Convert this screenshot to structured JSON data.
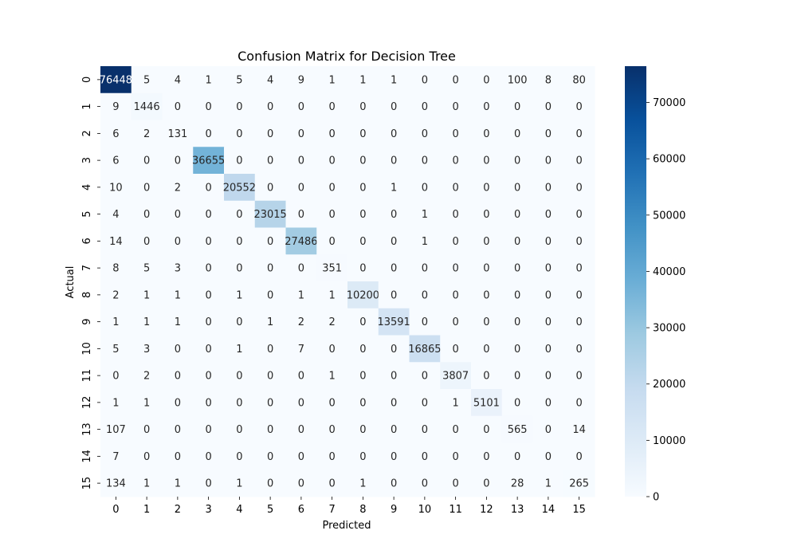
{
  "chart_data": {
    "type": "heatmap",
    "title": "Confusion Matrix for Decision Tree",
    "xlabel": "Predicted",
    "ylabel": "Actual",
    "x_categories": [
      "0",
      "1",
      "2",
      "3",
      "4",
      "5",
      "6",
      "7",
      "8",
      "9",
      "10",
      "11",
      "12",
      "13",
      "14",
      "15"
    ],
    "y_categories": [
      "0",
      "1",
      "2",
      "3",
      "4",
      "5",
      "6",
      "7",
      "8",
      "9",
      "10",
      "11",
      "12",
      "13",
      "14",
      "15"
    ],
    "values": [
      [
        76448,
        5,
        4,
        1,
        5,
        4,
        9,
        1,
        1,
        1,
        0,
        0,
        0,
        100,
        8,
        80
      ],
      [
        9,
        1446,
        0,
        0,
        0,
        0,
        0,
        0,
        0,
        0,
        0,
        0,
        0,
        0,
        0,
        0
      ],
      [
        6,
        2,
        131,
        0,
        0,
        0,
        0,
        0,
        0,
        0,
        0,
        0,
        0,
        0,
        0,
        0
      ],
      [
        6,
        0,
        0,
        36655,
        0,
        0,
        0,
        0,
        0,
        0,
        0,
        0,
        0,
        0,
        0,
        0
      ],
      [
        10,
        0,
        2,
        0,
        20552,
        0,
        0,
        0,
        0,
        1,
        0,
        0,
        0,
        0,
        0,
        0
      ],
      [
        4,
        0,
        0,
        0,
        0,
        23015,
        0,
        0,
        0,
        0,
        1,
        0,
        0,
        0,
        0,
        0
      ],
      [
        14,
        0,
        0,
        0,
        0,
        0,
        27486,
        0,
        0,
        0,
        1,
        0,
        0,
        0,
        0,
        0
      ],
      [
        8,
        5,
        3,
        0,
        0,
        0,
        0,
        351,
        0,
        0,
        0,
        0,
        0,
        0,
        0,
        0
      ],
      [
        2,
        1,
        1,
        0,
        1,
        0,
        1,
        1,
        10200,
        0,
        0,
        0,
        0,
        0,
        0,
        0
      ],
      [
        1,
        1,
        1,
        0,
        0,
        1,
        2,
        2,
        0,
        13591,
        0,
        0,
        0,
        0,
        0,
        0
      ],
      [
        5,
        3,
        0,
        0,
        1,
        0,
        7,
        0,
        0,
        0,
        16865,
        0,
        0,
        0,
        0,
        0
      ],
      [
        0,
        2,
        0,
        0,
        0,
        0,
        0,
        1,
        0,
        0,
        0,
        3807,
        0,
        0,
        0,
        0
      ],
      [
        1,
        1,
        0,
        0,
        0,
        0,
        0,
        0,
        0,
        0,
        0,
        1,
        5101,
        0,
        0,
        0
      ],
      [
        107,
        0,
        0,
        0,
        0,
        0,
        0,
        0,
        0,
        0,
        0,
        0,
        0,
        565,
        0,
        14
      ],
      [
        7,
        0,
        0,
        0,
        0,
        0,
        0,
        0,
        0,
        0,
        0,
        0,
        0,
        0,
        0,
        0
      ],
      [
        134,
        1,
        1,
        0,
        1,
        0,
        0,
        0,
        1,
        0,
        0,
        0,
        0,
        28,
        1,
        265
      ]
    ],
    "colorbar": {
      "colormap": "Blues",
      "vmin": 0,
      "vmax": 76448,
      "ticks": [
        0,
        10000,
        20000,
        30000,
        40000,
        50000,
        60000,
        70000
      ]
    },
    "grid": false
  }
}
